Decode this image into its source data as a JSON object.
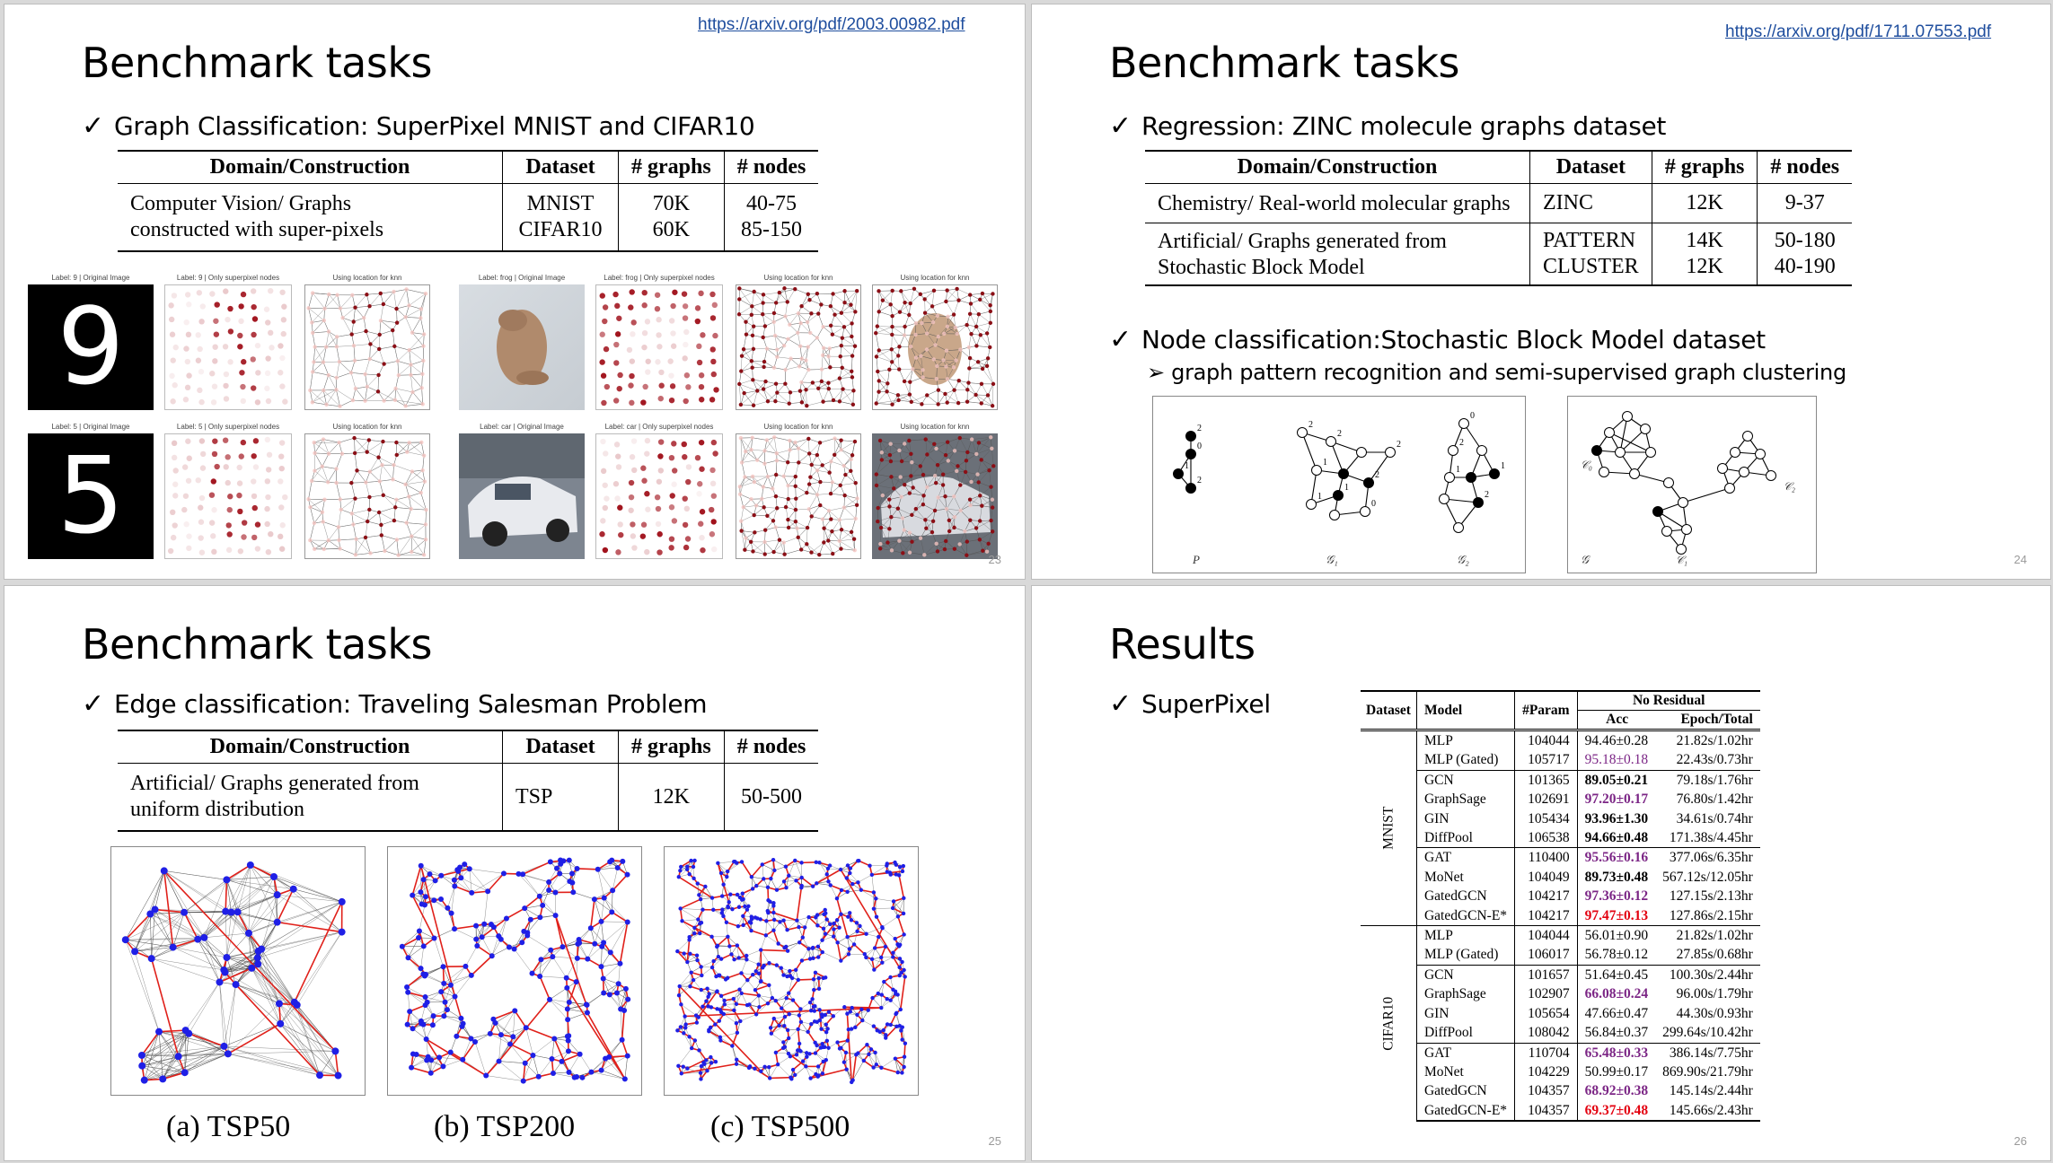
{
  "slide1": {
    "link": "https://arxiv.org/pdf/2003.00982.pdf",
    "title": "Benchmark tasks",
    "bullet": "Graph Classification: SuperPixel MNIST and CIFAR10",
    "table": {
      "headers": [
        "Domain/Construction",
        "Dataset",
        "# graphs",
        "# nodes"
      ],
      "row": {
        "domain_l1": "Computer Vision/ Graphs",
        "domain_l2": "constructed with super-pixels",
        "ds1": "MNIST",
        "ds2": "CIFAR10",
        "g1": "70K",
        "g2": "60K",
        "n1": "40-75",
        "n2": "85-150"
      }
    },
    "captions": {
      "mnist9_orig": "Label: 9 | Original Image",
      "mnist9_sp": "Label: 9 | Only superpixel nodes",
      "knn": "Using location for knn",
      "frog_orig": "Label: frog | Original Image",
      "frog_sp": "Label: frog | Only superpixel nodes",
      "mnist5_orig": "Label: 5 | Original Image",
      "mnist5_sp": "Label: 5 | Only superpixel nodes",
      "car_orig": "Label: car | Original Image",
      "car_sp": "Label: car | Only superpixel nodes"
    },
    "digits": {
      "top": "9",
      "bottom": "5"
    },
    "page": "23"
  },
  "slide2": {
    "link": "https://arxiv.org/pdf/1711.07553.pdf",
    "title": "Benchmark tasks",
    "bullet1": "Regression: ZINC molecule graphs dataset",
    "table": {
      "headers": [
        "Domain/Construction",
        "Dataset",
        "# graphs",
        "# nodes"
      ],
      "row1": {
        "domain": "Chemistry/ Real-world molecular graphs",
        "ds": "ZINC",
        "g": "12K",
        "n": "9-37"
      },
      "row2": {
        "domain_l1": "Artificial/ Graphs generated from",
        "domain_l2": "Stochastic Block Model",
        "ds1": "PATTERN",
        "ds2": "CLUSTER",
        "g1": "14K",
        "g2": "12K",
        "n1": "50-180",
        "n2": "40-190"
      }
    },
    "bullet2": "Node classification:Stochastic Block Model dataset",
    "sub": "graph pattern recognition and semi-supervised graph clustering",
    "fig_labels": {
      "p": "P",
      "g1": "𝒢₁",
      "g2": "𝒢₂",
      "g": "𝒢",
      "c0": "𝒞₀",
      "c1": "𝒞₁",
      "c2": "𝒞₂"
    },
    "page": "24"
  },
  "slide3": {
    "title": "Benchmark tasks",
    "bullet": "Edge classification: Traveling Salesman Problem",
    "table": {
      "headers": [
        "Domain/Construction",
        "Dataset",
        "# graphs",
        "# nodes"
      ],
      "row": {
        "domain_l1": "Artificial/ Graphs generated from",
        "domain_l2": "uniform distribution",
        "ds": "TSP",
        "g": "12K",
        "n": "50-500"
      }
    },
    "captions": [
      "(a) TSP50",
      "(b) TSP200",
      "(c) TSP500"
    ],
    "page": "25"
  },
  "slide4": {
    "title": "Results",
    "bullet": "SuperPixel",
    "table": {
      "h_dataset": "Dataset",
      "h_model": "Model",
      "h_param": "#Param",
      "h_group": "No Residual",
      "h_acc": "Acc",
      "h_epoch": "Epoch/Total",
      "groups": [
        {
          "name": "MNIST",
          "rows": [
            {
              "model": "MLP",
              "param": "104044",
              "acc": "94.46±0.28",
              "epoch": "21.82s/1.02hr",
              "style": "",
              "sep": false
            },
            {
              "model": "MLP (Gated)",
              "param": "105717",
              "acc": "95.18±0.18",
              "epoch": "22.43s/0.73hr",
              "style": "purple-plain",
              "sep": false
            },
            {
              "model": "GCN",
              "param": "101365",
              "acc": "89.05±0.21",
              "epoch": "79.18s/1.76hr",
              "style": "bold",
              "sep": true
            },
            {
              "model": "GraphSage",
              "param": "102691",
              "acc": "97.20±0.17",
              "epoch": "76.80s/1.42hr",
              "style": "purple",
              "sep": false
            },
            {
              "model": "GIN",
              "param": "105434",
              "acc": "93.96±1.30",
              "epoch": "34.61s/0.74hr",
              "style": "bold",
              "sep": false
            },
            {
              "model": "DiffPool",
              "param": "106538",
              "acc": "94.66±0.48",
              "epoch": "171.38s/4.45hr",
              "style": "bold",
              "sep": false
            },
            {
              "model": "GAT",
              "param": "110400",
              "acc": "95.56±0.16",
              "epoch": "377.06s/6.35hr",
              "style": "purple",
              "sep": true
            },
            {
              "model": "MoNet",
              "param": "104049",
              "acc": "89.73±0.48",
              "epoch": "567.12s/12.05hr",
              "style": "bold",
              "sep": false
            },
            {
              "model": "GatedGCN",
              "param": "104217",
              "acc": "97.36±0.12",
              "epoch": "127.15s/2.13hr",
              "style": "purple",
              "sep": false
            },
            {
              "model": "GatedGCN-E*",
              "param": "104217",
              "acc": "97.47±0.13",
              "epoch": "127.86s/2.15hr",
              "style": "red",
              "sep": false
            }
          ]
        },
        {
          "name": "CIFAR10",
          "rows": [
            {
              "model": "MLP",
              "param": "104044",
              "acc": "56.01±0.90",
              "epoch": "21.82s/1.02hr",
              "style": "",
              "sep": false
            },
            {
              "model": "MLP (Gated)",
              "param": "106017",
              "acc": "56.78±0.12",
              "epoch": "27.85s/0.68hr",
              "style": "",
              "sep": false
            },
            {
              "model": "GCN",
              "param": "101657",
              "acc": "51.64±0.45",
              "epoch": "100.30s/2.44hr",
              "style": "",
              "sep": true
            },
            {
              "model": "GraphSage",
              "param": "102907",
              "acc": "66.08±0.24",
              "epoch": "96.00s/1.79hr",
              "style": "purple",
              "sep": false
            },
            {
              "model": "GIN",
              "param": "105654",
              "acc": "47.66±0.47",
              "epoch": "44.30s/0.93hr",
              "style": "",
              "sep": false
            },
            {
              "model": "DiffPool",
              "param": "108042",
              "acc": "56.84±0.37",
              "epoch": "299.64s/10.42hr",
              "style": "",
              "sep": false
            },
            {
              "model": "GAT",
              "param": "110704",
              "acc": "65.48±0.33",
              "epoch": "386.14s/7.75hr",
              "style": "purple",
              "sep": true
            },
            {
              "model": "MoNet",
              "param": "104229",
              "acc": "50.99±0.17",
              "epoch": "869.90s/21.79hr",
              "style": "",
              "sep": false
            },
            {
              "model": "GatedGCN",
              "param": "104357",
              "acc": "68.92±0.38",
              "epoch": "145.14s/2.44hr",
              "style": "purple",
              "sep": false
            },
            {
              "model": "GatedGCN-E*",
              "param": "104357",
              "acc": "69.37±0.48",
              "epoch": "145.66s/2.43hr",
              "style": "red",
              "sep": false
            }
          ]
        }
      ]
    },
    "page": "26"
  },
  "colors": {
    "link": "#1f4e9e",
    "purple": "#7b2585",
    "red": "#e3000f",
    "node_blue": "#1f1fe6",
    "edge_red": "#e0201a",
    "superpixel": "#a0101a"
  }
}
